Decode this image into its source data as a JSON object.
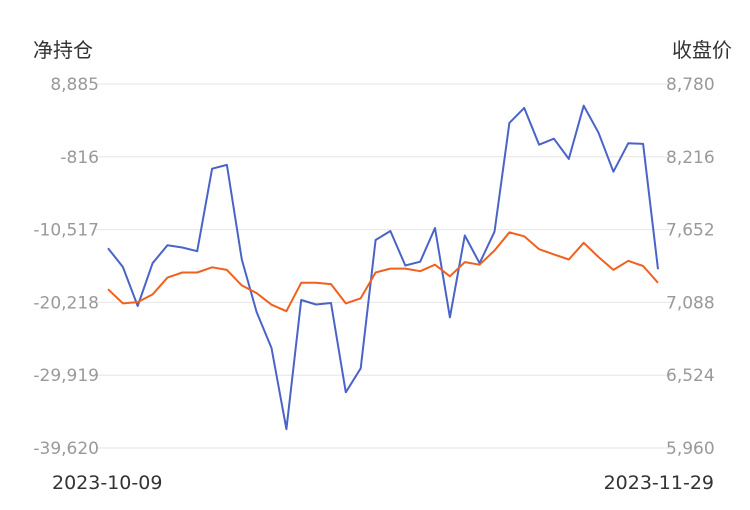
{
  "chart_data": {
    "type": "line",
    "left_axis": {
      "label": "净持仓",
      "ticks": [
        "8,885",
        "-816",
        "-10,517",
        "-20,218",
        "-29,919",
        "-39,620"
      ],
      "ylim": [
        -39620,
        8885
      ]
    },
    "right_axis": {
      "label": "收盘价",
      "ticks": [
        "8,780",
        "8,216",
        "7,652",
        "7,088",
        "6,524",
        "5,960"
      ],
      "ylim": [
        5960,
        8780
      ]
    },
    "x_labels": [
      "2023-10-09",
      "2023-11-29"
    ],
    "grid": true,
    "series": [
      {
        "axis": "left",
        "color": "#4a63c8",
        "values": [
          -13000,
          -15500,
          -20700,
          -15000,
          -12600,
          -12900,
          -13400,
          -2400,
          -1900,
          -14500,
          -21500,
          -26300,
          -37100,
          -19900,
          -20500,
          -20300,
          -32200,
          -29000,
          -11900,
          -10700,
          -15300,
          -14800,
          -10300,
          -22200,
          -11300,
          -15000,
          -10800,
          3700,
          5700,
          800,
          1600,
          -1100,
          6000,
          2400,
          -2800,
          1000,
          900,
          -15800
        ]
      },
      {
        "axis": "right",
        "color": "#f0601f",
        "values": [
          7190,
          7080,
          7090,
          7150,
          7280,
          7320,
          7320,
          7360,
          7340,
          7220,
          7160,
          7070,
          7020,
          7240,
          7240,
          7230,
          7080,
          7120,
          7320,
          7350,
          7350,
          7330,
          7380,
          7290,
          7400,
          7380,
          7490,
          7630,
          7600,
          7500,
          7460,
          7420,
          7550,
          7440,
          7340,
          7410,
          7370,
          7240
        ]
      }
    ]
  }
}
